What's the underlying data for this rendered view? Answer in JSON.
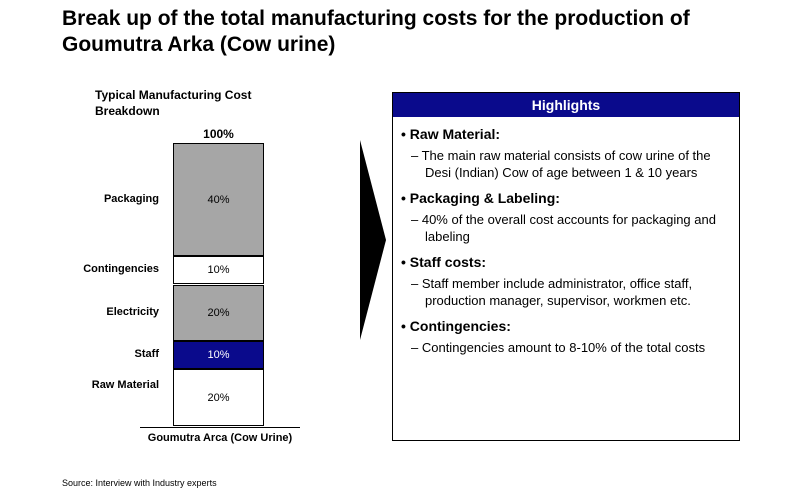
{
  "title": "Break up of the total manufacturing costs for the production of Goumutra Arka (Cow urine)",
  "chart_data": {
    "type": "bar",
    "stacked": true,
    "title": "Typical Manufacturing Cost Breakdown",
    "total_label": "100%",
    "categories": [
      "Goumutra Arca (Cow Urine)"
    ],
    "segments": [
      {
        "name": "Raw Material",
        "value": 20,
        "label": "20%",
        "color": "#ffffff",
        "text_color": "#000000"
      },
      {
        "name": "Staff",
        "value": 10,
        "label": "10%",
        "color": "#0a0a8c",
        "text_color": "#ffffff"
      },
      {
        "name": "Electricity",
        "value": 20,
        "label": "20%",
        "color": "#a6a6a6",
        "text_color": "#000000"
      },
      {
        "name": "Contingencies",
        "value": 10,
        "label": "10%",
        "color": "#ffffff",
        "text_color": "#000000"
      },
      {
        "name": "Packaging",
        "value": 40,
        "label": "40%",
        "color": "#a6a6a6",
        "text_color": "#000000"
      }
    ],
    "ylim": [
      0,
      100
    ]
  },
  "highlights": {
    "header": "Highlights",
    "sections": [
      {
        "title": "• Raw Material:",
        "item": "– The main raw material consists of cow urine of the  Desi (Indian) Cow of age between 1 & 10 years"
      },
      {
        "title": "• Packaging & Labeling:",
        "item": "– 40% of the overall cost accounts for packaging and labeling"
      },
      {
        "title": "• Staff costs:",
        "item": "– Staff member include administrator, office staff, production manager, supervisor, workmen etc."
      },
      {
        "title": "• Contingencies:",
        "item": "– Contingencies amount to 8-10% of the total costs"
      }
    ]
  },
  "source": "Source: Interview with Industry experts",
  "colors": {
    "accent": "#0a0a8c",
    "gray": "#a6a6a6"
  }
}
